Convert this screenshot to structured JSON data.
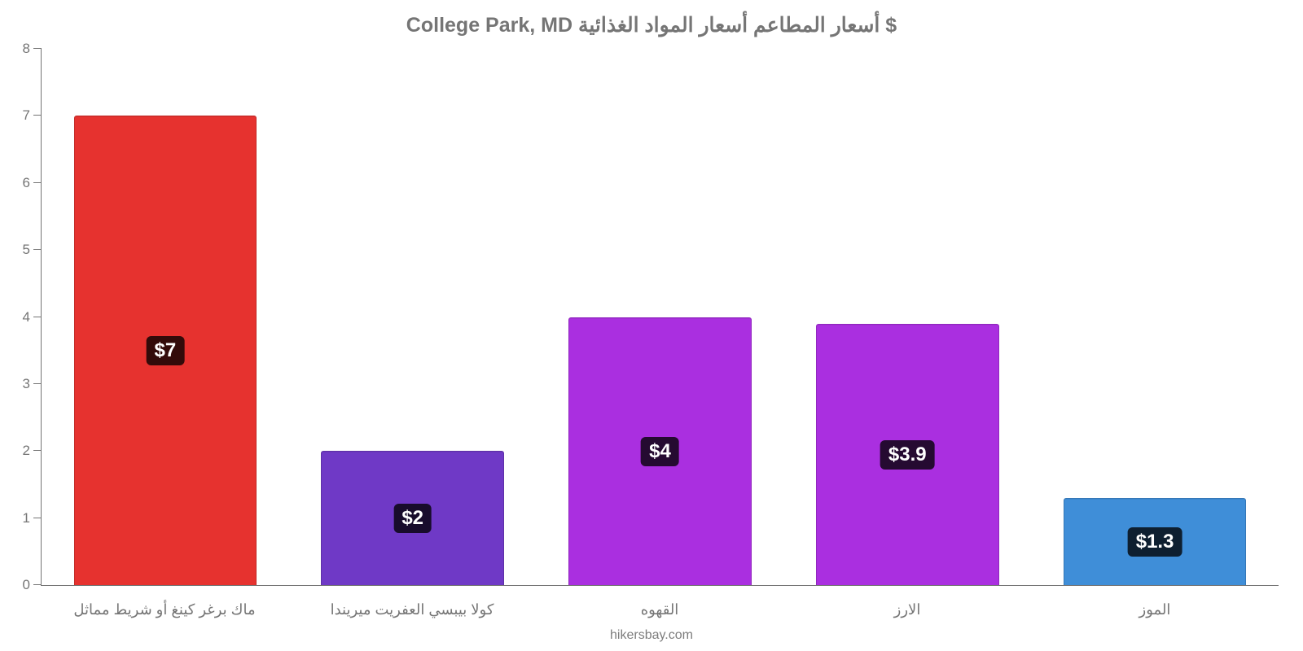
{
  "chart": {
    "type": "bar",
    "title": "College Park, MD أسعار المطاعم أسعار المواد الغذائية $",
    "title_fontsize": 25,
    "title_color": "#757575",
    "ylim": [
      0,
      8
    ],
    "ytick_step": 1,
    "axis_color": "#757575",
    "tick_label_color": "#757575",
    "tick_fontsize": 17,
    "xlabel_fontsize": 18,
    "background_color": "#ffffff",
    "bar_width_pct": 74,
    "value_badge": {
      "bg": "rgba(0,0,0,0.78)",
      "color": "#ffffff",
      "fontsize": 24,
      "radius": 6
    },
    "categories": [
      "ماك برغر كينغ أو شريط مماثل",
      "كولا بيبسي العفريت ميريندا",
      "القهوه",
      "الارز",
      "الموز"
    ],
    "values": [
      7,
      2,
      4,
      3.9,
      1.3
    ],
    "value_labels": [
      "$7",
      "$2",
      "$4",
      "$3.9",
      "$1.3"
    ],
    "bar_colors": [
      "#e6322f",
      "#6f39c6",
      "#aa2fe0",
      "#aa2fe0",
      "#3f8ed8"
    ],
    "footer": "hikersbay.com",
    "footer_color": "#7d7d7d",
    "footer_fontsize": 16
  }
}
